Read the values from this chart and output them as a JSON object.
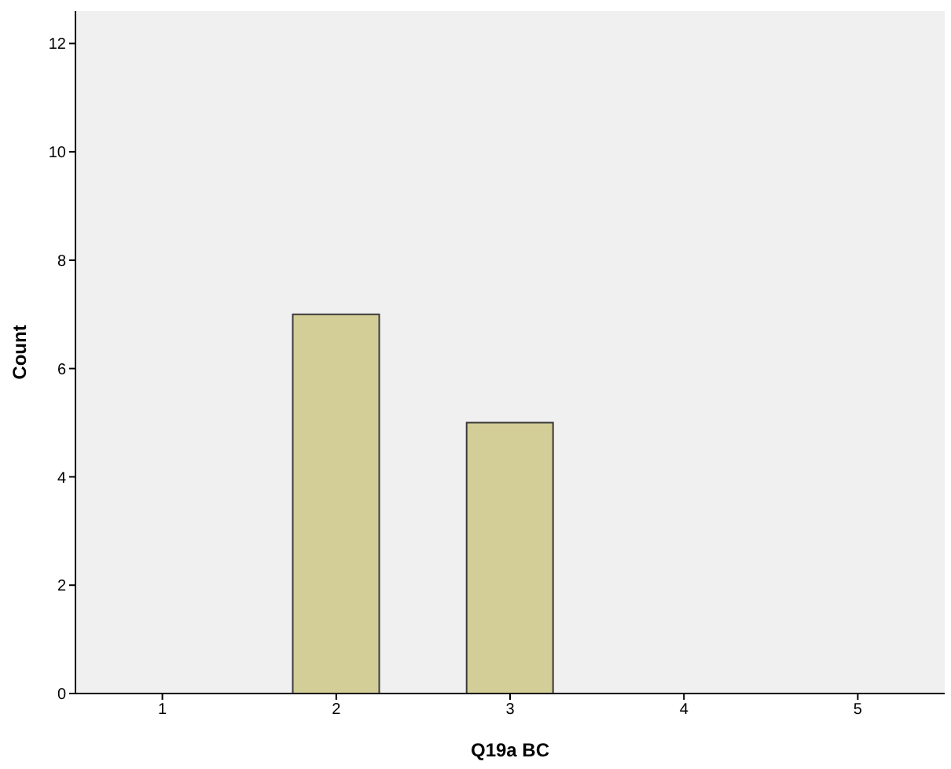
{
  "chart_data": {
    "type": "bar",
    "xlabel": "Q19a BC",
    "ylabel": "Count",
    "categories": [
      "1",
      "2",
      "3",
      "4",
      "5"
    ],
    "values": [
      0,
      7,
      5,
      0,
      0
    ],
    "color": "#d3ce97",
    "ylim": [
      0,
      12.6
    ],
    "yticks": [
      0,
      2,
      4,
      6,
      8,
      10,
      12
    ],
    "grid": false
  }
}
